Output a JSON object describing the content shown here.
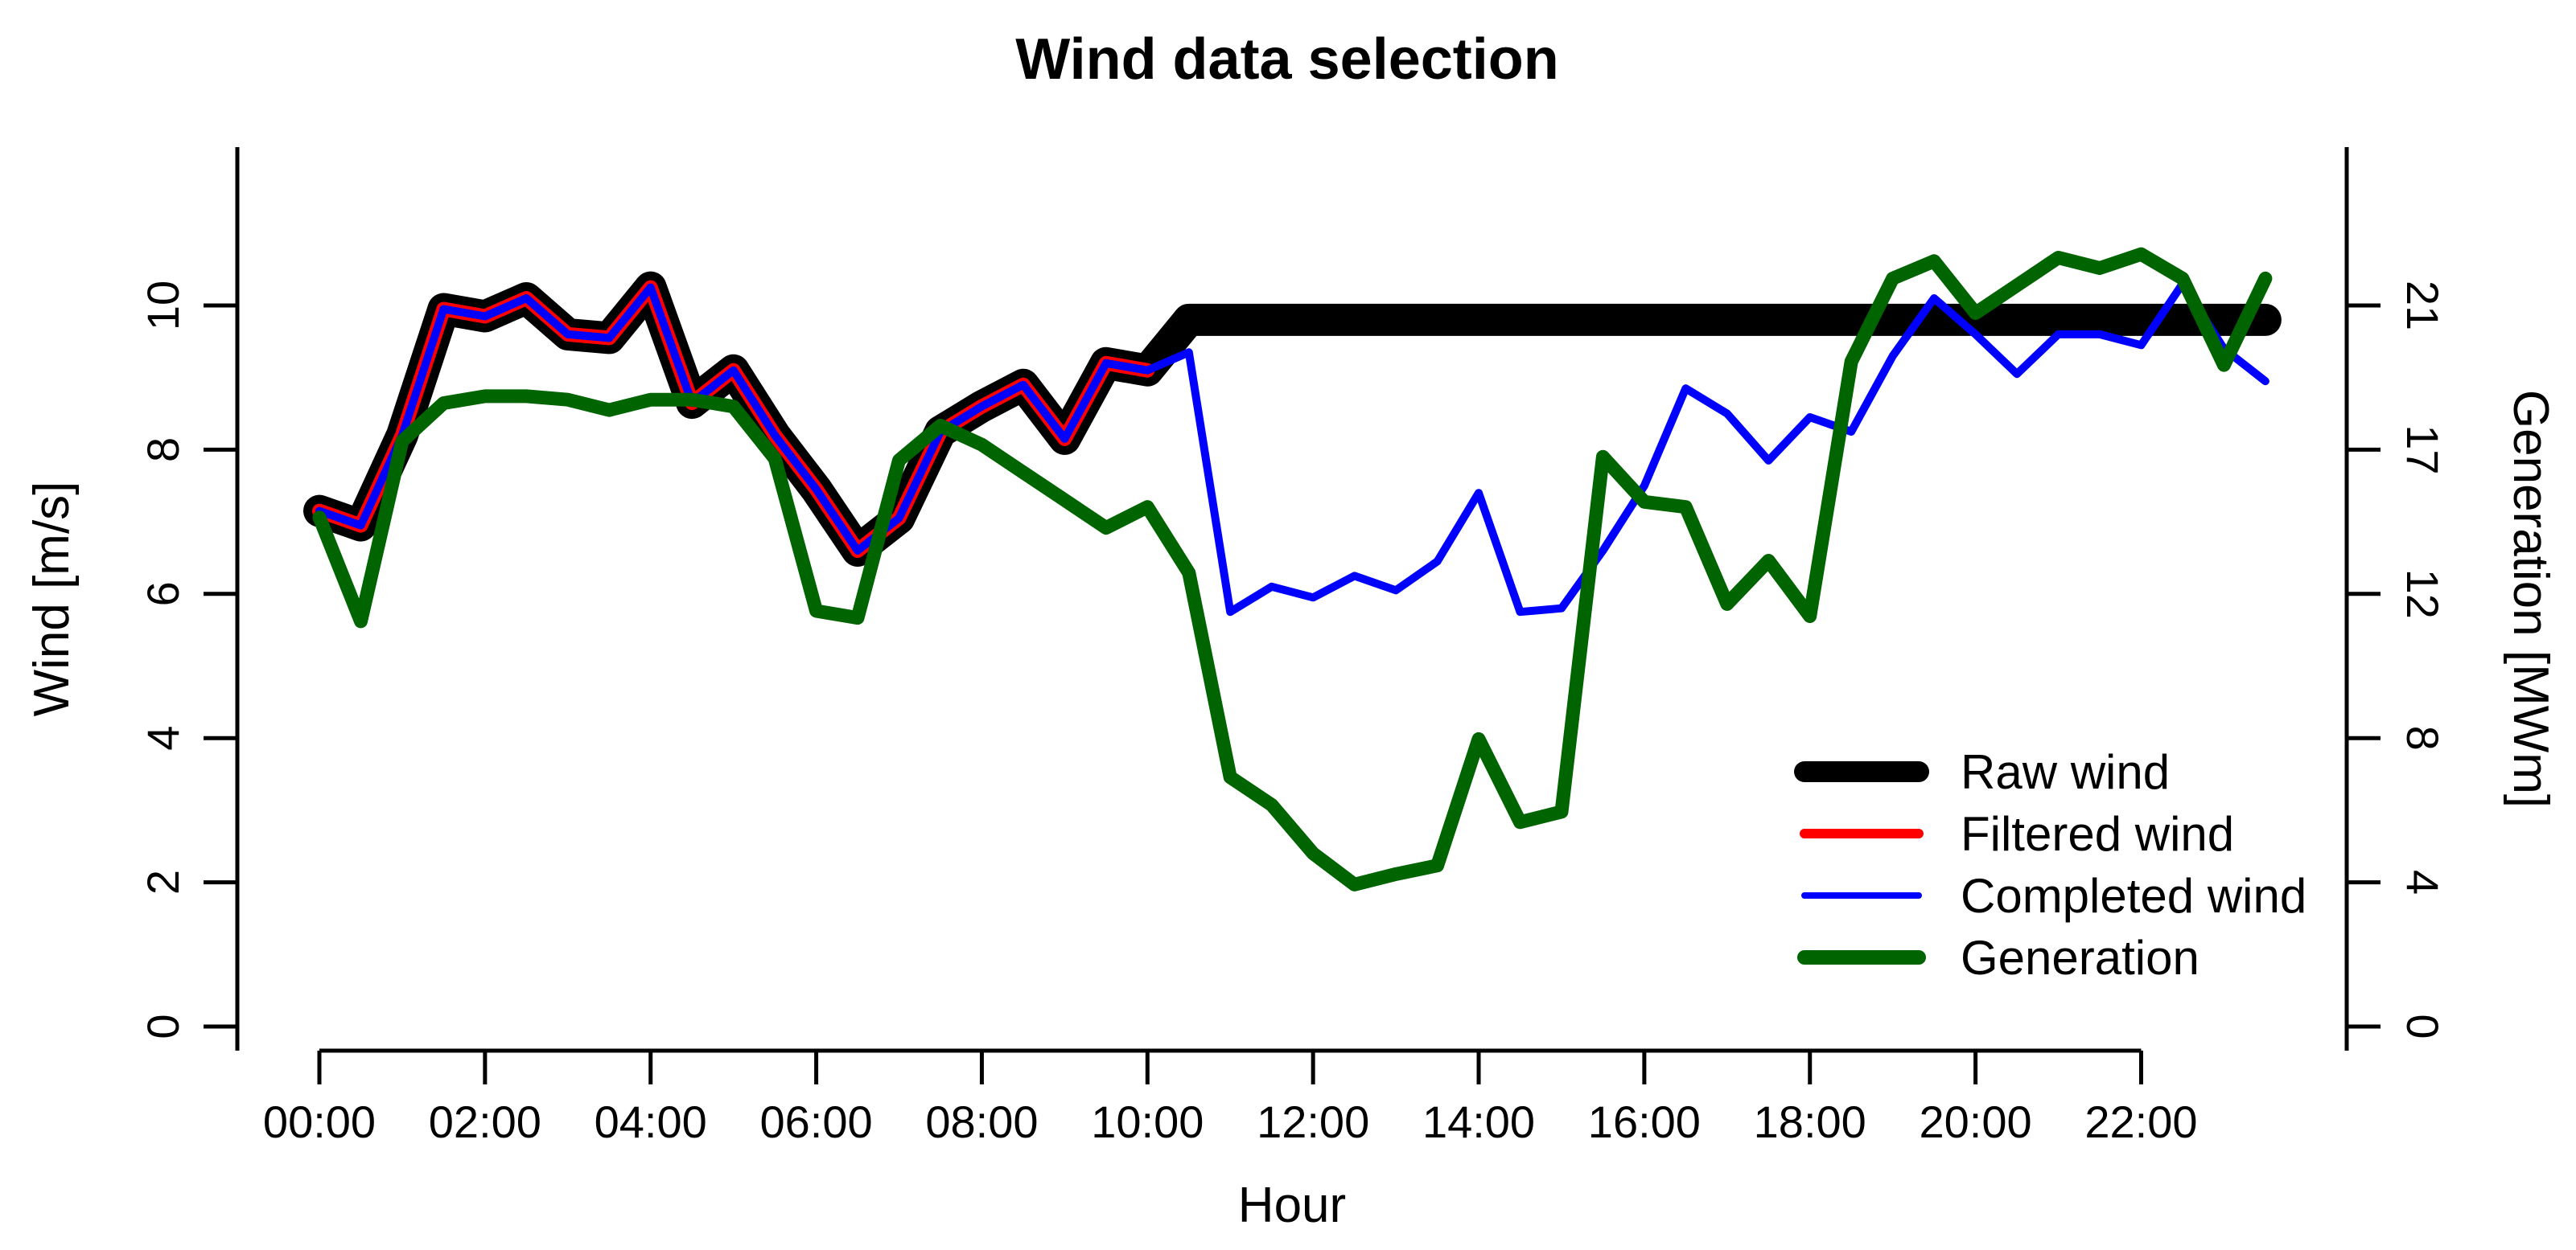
{
  "chart_data": {
    "type": "line",
    "title": "Wind data selection",
    "x_label": "Hour",
    "y_left_label": "Wind [m/s]",
    "y_right_label": "Generation [MWm]",
    "x_ticks": [
      {
        "h": 0,
        "label": "00:00"
      },
      {
        "h": 2,
        "label": "02:00"
      },
      {
        "h": 4,
        "label": "04:00"
      },
      {
        "h": 6,
        "label": "06:00"
      },
      {
        "h": 8,
        "label": "08:00"
      },
      {
        "h": 10,
        "label": "10:00"
      },
      {
        "h": 12,
        "label": "12:00"
      },
      {
        "h": 14,
        "label": "14:00"
      },
      {
        "h": 16,
        "label": "16:00"
      },
      {
        "h": 18,
        "label": "18:00"
      },
      {
        "h": 20,
        "label": "20:00"
      },
      {
        "h": 22,
        "label": "22:00"
      }
    ],
    "y_left_ticks": [
      {
        "v": 0,
        "label": "0"
      },
      {
        "v": 2,
        "label": "2"
      },
      {
        "v": 4,
        "label": "4"
      },
      {
        "v": 6,
        "label": "6"
      },
      {
        "v": 8,
        "label": "8"
      },
      {
        "v": 10,
        "label": "10"
      }
    ],
    "y_right_ticks": [
      {
        "v": 0,
        "label": "0"
      },
      {
        "v": 2,
        "label": "4"
      },
      {
        "v": 4,
        "label": "8"
      },
      {
        "v": 6,
        "label": "12"
      },
      {
        "v": 8,
        "label": "17"
      },
      {
        "v": 10,
        "label": "21"
      }
    ],
    "y_left_range": [
      0,
      12.2
    ],
    "y_right_range": [
      0,
      25.4
    ],
    "x_range_hours": [
      -1,
      24.5
    ],
    "hours": [
      0,
      0.5,
      1,
      1.5,
      2,
      2.5,
      3,
      3.5,
      4,
      4.5,
      5,
      5.5,
      6,
      6.5,
      7,
      7.5,
      8,
      8.5,
      9,
      9.5,
      10,
      10.5,
      11,
      11.5,
      12,
      12.5,
      13,
      13.5,
      14,
      14.5,
      15,
      15.5,
      16,
      16.5,
      17,
      17.5,
      18,
      18.5,
      19,
      19.5,
      20,
      20.5,
      21,
      21.5,
      22,
      22.5,
      23,
      23.5
    ],
    "series": [
      {
        "name": "Raw wind",
        "color": "#000000",
        "axis": "left",
        "line_width": 40,
        "values": [
          7.15,
          6.95,
          8.2,
          9.95,
          9.85,
          10.1,
          9.6,
          9.55,
          10.25,
          8.65,
          9.1,
          8.2,
          7.45,
          6.6,
          7.05,
          8.25,
          8.6,
          8.9,
          8.15,
          9.2,
          9.1,
          9.8,
          9.8,
          9.8,
          9.8,
          9.8,
          9.8,
          9.8,
          9.8,
          9.8,
          9.8,
          9.8,
          9.8,
          9.8,
          9.8,
          9.8,
          9.8,
          9.8,
          9.8,
          9.8,
          9.8,
          9.8,
          9.8,
          9.8,
          9.8,
          9.8,
          9.8,
          9.8
        ]
      },
      {
        "name": "Filtered wind",
        "color": "#FF0000",
        "axis": "left",
        "line_width": 18,
        "values": [
          7.15,
          6.95,
          8.2,
          9.95,
          9.85,
          10.1,
          9.6,
          9.55,
          10.25,
          8.65,
          9.1,
          8.2,
          7.45,
          6.6,
          7.05,
          8.25,
          8.6,
          8.9,
          8.15,
          9.2,
          9.1
        ]
      },
      {
        "name": "Completed wind",
        "color": "#0000FF",
        "axis": "left",
        "line_width": 10,
        "values": [
          7.15,
          6.95,
          8.2,
          9.95,
          9.85,
          10.1,
          9.6,
          9.55,
          10.25,
          8.65,
          9.1,
          8.2,
          7.45,
          6.6,
          7.05,
          8.25,
          8.6,
          8.9,
          8.15,
          9.2,
          9.1,
          9.35,
          5.75,
          6.1,
          5.95,
          6.25,
          6.05,
          6.45,
          7.4,
          5.75,
          5.8,
          6.6,
          7.5,
          8.85,
          8.5,
          7.85,
          8.45,
          8.25,
          9.3,
          10.1,
          9.6,
          9.05,
          9.6,
          9.6,
          9.45,
          10.3,
          9.4,
          8.95
        ]
      },
      {
        "name": "Generation",
        "color": "#006400",
        "axis": "right",
        "line_width": 17,
        "values": [
          14.7,
          11.7,
          16.9,
          18.0,
          18.2,
          18.2,
          18.1,
          17.8,
          18.1,
          18.1,
          17.9,
          16.4,
          12.0,
          11.8,
          16.35,
          17.35,
          16.8,
          16.0,
          15.2,
          14.4,
          15.0,
          13.1,
          7.2,
          6.4,
          5.0,
          4.1,
          4.4,
          4.65,
          8.3,
          5.9,
          6.2,
          16.45,
          15.15,
          15.0,
          12.2,
          13.45,
          11.85,
          19.2,
          21.6,
          22.1,
          20.6,
          21.4,
          22.2,
          21.9,
          22.3,
          21.6,
          19.1,
          21.6
        ]
      }
    ],
    "legend": {
      "position": "right-lower",
      "items": [
        "Raw wind",
        "Filtered wind",
        "Completed wind",
        "Generation"
      ]
    }
  }
}
